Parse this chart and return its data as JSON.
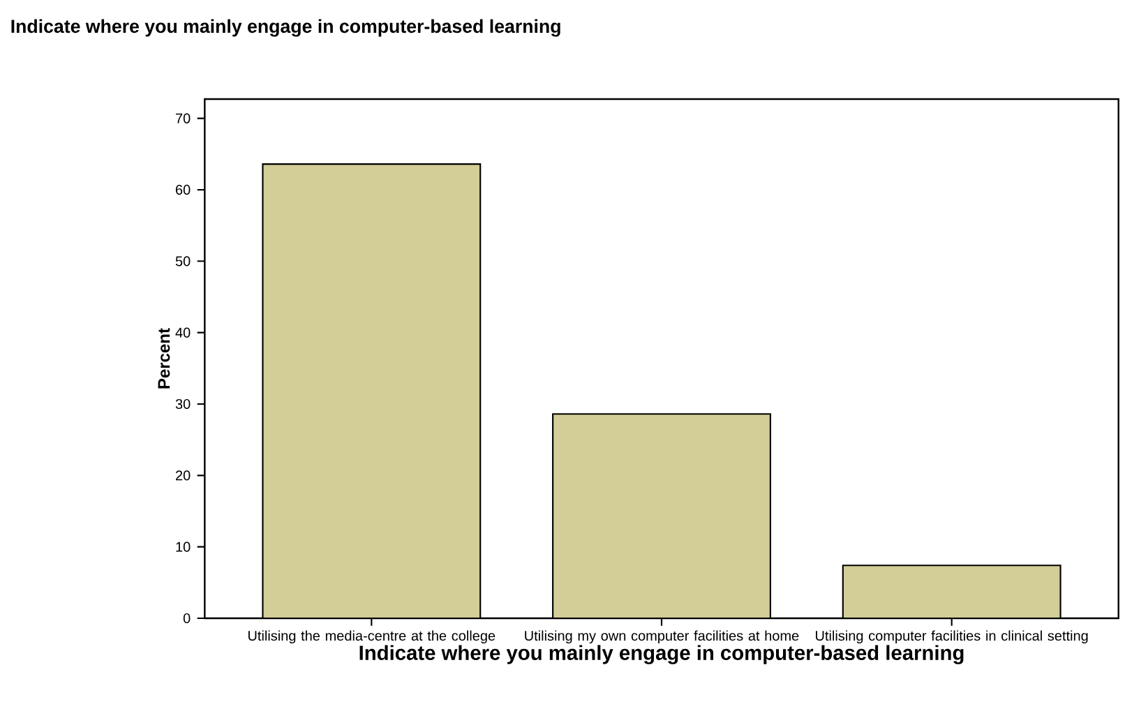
{
  "chart_data": {
    "type": "bar",
    "title": "Indicate where you mainly engage in computer-based learning",
    "xlabel": "Indicate where you mainly engage in computer-based learning",
    "ylabel": "Percent",
    "categories": [
      "Utilising the media-centre at the college",
      "Utilising my own computer facilities at home",
      "Utilising computer facilities in clinical setting"
    ],
    "values": [
      63.6,
      28.6,
      7.4
    ],
    "color": "#d3cd97",
    "ylim": [
      0,
      72.7
    ],
    "yticks": [
      0,
      10,
      20,
      30,
      40,
      50,
      60,
      70
    ],
    "grid": false
  }
}
